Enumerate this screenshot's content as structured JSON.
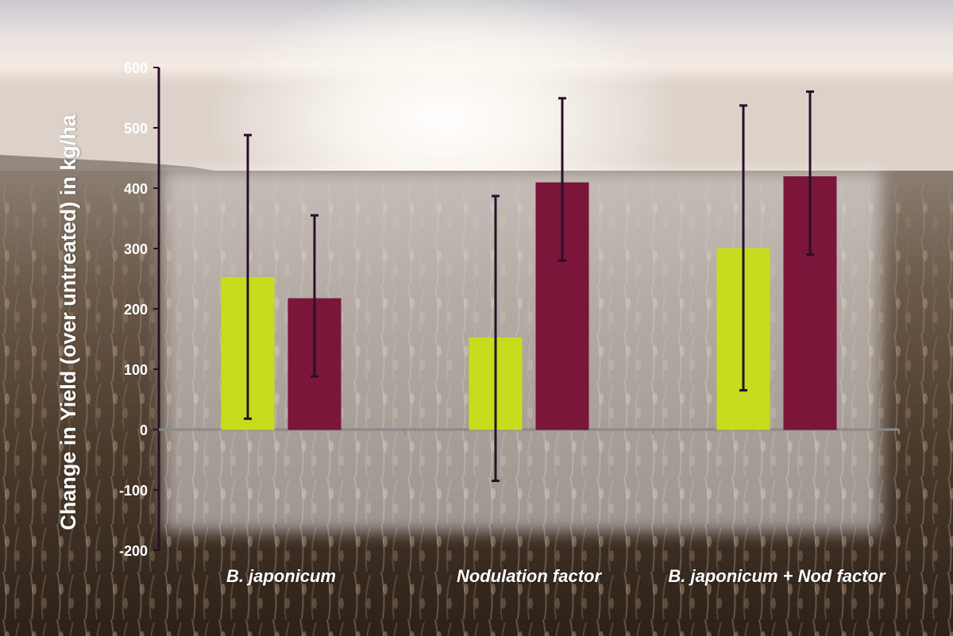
{
  "chart_data": {
    "type": "bar",
    "ylabel": "Change in Yield (over untreated) in kg/ha",
    "ylim": [
      -200,
      600
    ],
    "yticks": [
      -200,
      -100,
      0,
      100,
      200,
      300,
      400,
      500,
      600
    ],
    "categories": [
      "B. japonicum",
      "Nodulation factor",
      "B. japonicum + Nod factor"
    ],
    "series": [
      {
        "color": "#c5dd1c",
        "values": [
          252,
          152,
          300
        ],
        "err_low": [
          18,
          -85,
          65
        ],
        "err_high": [
          488,
          387,
          537
        ]
      },
      {
        "color": "#7b1539",
        "values": [
          217,
          409,
          419
        ],
        "err_low": [
          88,
          280,
          290
        ],
        "err_high": [
          355,
          549,
          560
        ]
      }
    ],
    "grid": false,
    "legend": "none"
  },
  "colors": {
    "axis": "#2a0f2a",
    "zero_line": "#8a8a8a",
    "error_bar": "#2a0f2a",
    "text": "#ffffff"
  },
  "background": "soybean field at sunset"
}
